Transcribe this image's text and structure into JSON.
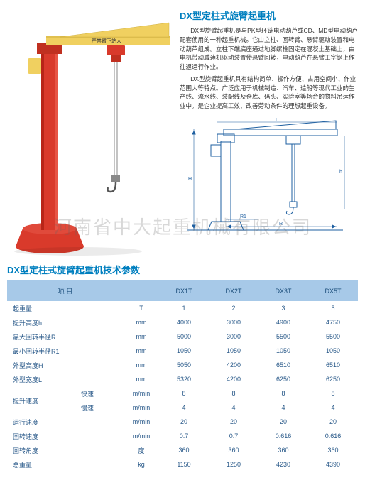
{
  "title": "DX型定柱式旋臂起重机",
  "desc1": "DX型旋臂起重机是与PK型环链电动葫芦或CD、MD型电动葫芦配套使用的一种起重机械。它由立柱、回转臂、悬臂驱动装置和电动葫芦组成。立柱下端底座通过地脚螺栓固定在混凝土基础上，由电机带动减速机驱动装置使悬臂回转，电动葫芦在悬臂工字钢上作往返运行作业。",
  "desc2": "DX型旋臂起重机具有结构简单、操作方便、占用空间小、作业范围大等特点。广泛应用于机械制造、汽车、造船等现代工业的生产线、流水线、装配线及仓库、码头、实验室等场合的物料吊运作业中。是企业提高工效、改善劳动条件的理想起重设备。",
  "watermark": "河南省中大起重机械有限公司",
  "params_title": "DX型定柱式旋臂起重机技术参数",
  "crane_label": "严禁臂下站人",
  "schematic_labels": {
    "R": "R",
    "R1": "R1",
    "H": "H",
    "h": "h",
    "L": "L"
  },
  "colors": {
    "brand": "#007fbf",
    "table_head_bg": "#a7c9e8",
    "table_text": "#2a5a8a",
    "crane_red": "#d93a2b",
    "crane_yellow": "#f0d060",
    "schematic_blue": "#1e5fa0"
  },
  "table": {
    "headers": [
      "项 目",
      "",
      "DX1T",
      "DX2T",
      "DX3T",
      "DX5T"
    ],
    "rows": [
      {
        "label": "起重量",
        "sub": "",
        "unit": "T",
        "vals": [
          "1",
          "2",
          "3",
          "5"
        ]
      },
      {
        "label": "提升高度h",
        "sub": "",
        "unit": "mm",
        "vals": [
          "4000",
          "3000",
          "4900",
          "4750"
        ]
      },
      {
        "label": "最大回转半径R",
        "sub": "",
        "unit": "mm",
        "vals": [
          "5000",
          "3000",
          "5500",
          "5500"
        ]
      },
      {
        "label": "最小回转半径R1",
        "sub": "",
        "unit": "mm",
        "vals": [
          "1050",
          "1050",
          "1050",
          "1050"
        ]
      },
      {
        "label": "外型高度H",
        "sub": "",
        "unit": "mm",
        "vals": [
          "5050",
          "4200",
          "6510",
          "6510"
        ]
      },
      {
        "label": "外型宽度L",
        "sub": "",
        "unit": "mm",
        "vals": [
          "5320",
          "4200",
          "6250",
          "6250"
        ]
      },
      {
        "label": "提升速度",
        "sub": "快速",
        "unit": "m/min",
        "vals": [
          "8",
          "8",
          "8",
          "8"
        ],
        "rowspan": 2
      },
      {
        "label": "",
        "sub": "慢速",
        "unit": "m/min",
        "vals": [
          "4",
          "4",
          "4",
          "4"
        ]
      },
      {
        "label": "运行速度",
        "sub": "",
        "unit": "m/min",
        "vals": [
          "20",
          "20",
          "20",
          "20"
        ]
      },
      {
        "label": "回转速度",
        "sub": "",
        "unit": "m/min",
        "vals": [
          "0.7",
          "0.7",
          "0.616",
          "0.616"
        ]
      },
      {
        "label": "回转角度",
        "sub": "",
        "unit": "度",
        "vals": [
          "360",
          "360",
          "360",
          "360"
        ]
      },
      {
        "label": "总重量",
        "sub": "",
        "unit": "kg",
        "vals": [
          "1150",
          "1250",
          "4230",
          "4390"
        ]
      }
    ]
  }
}
